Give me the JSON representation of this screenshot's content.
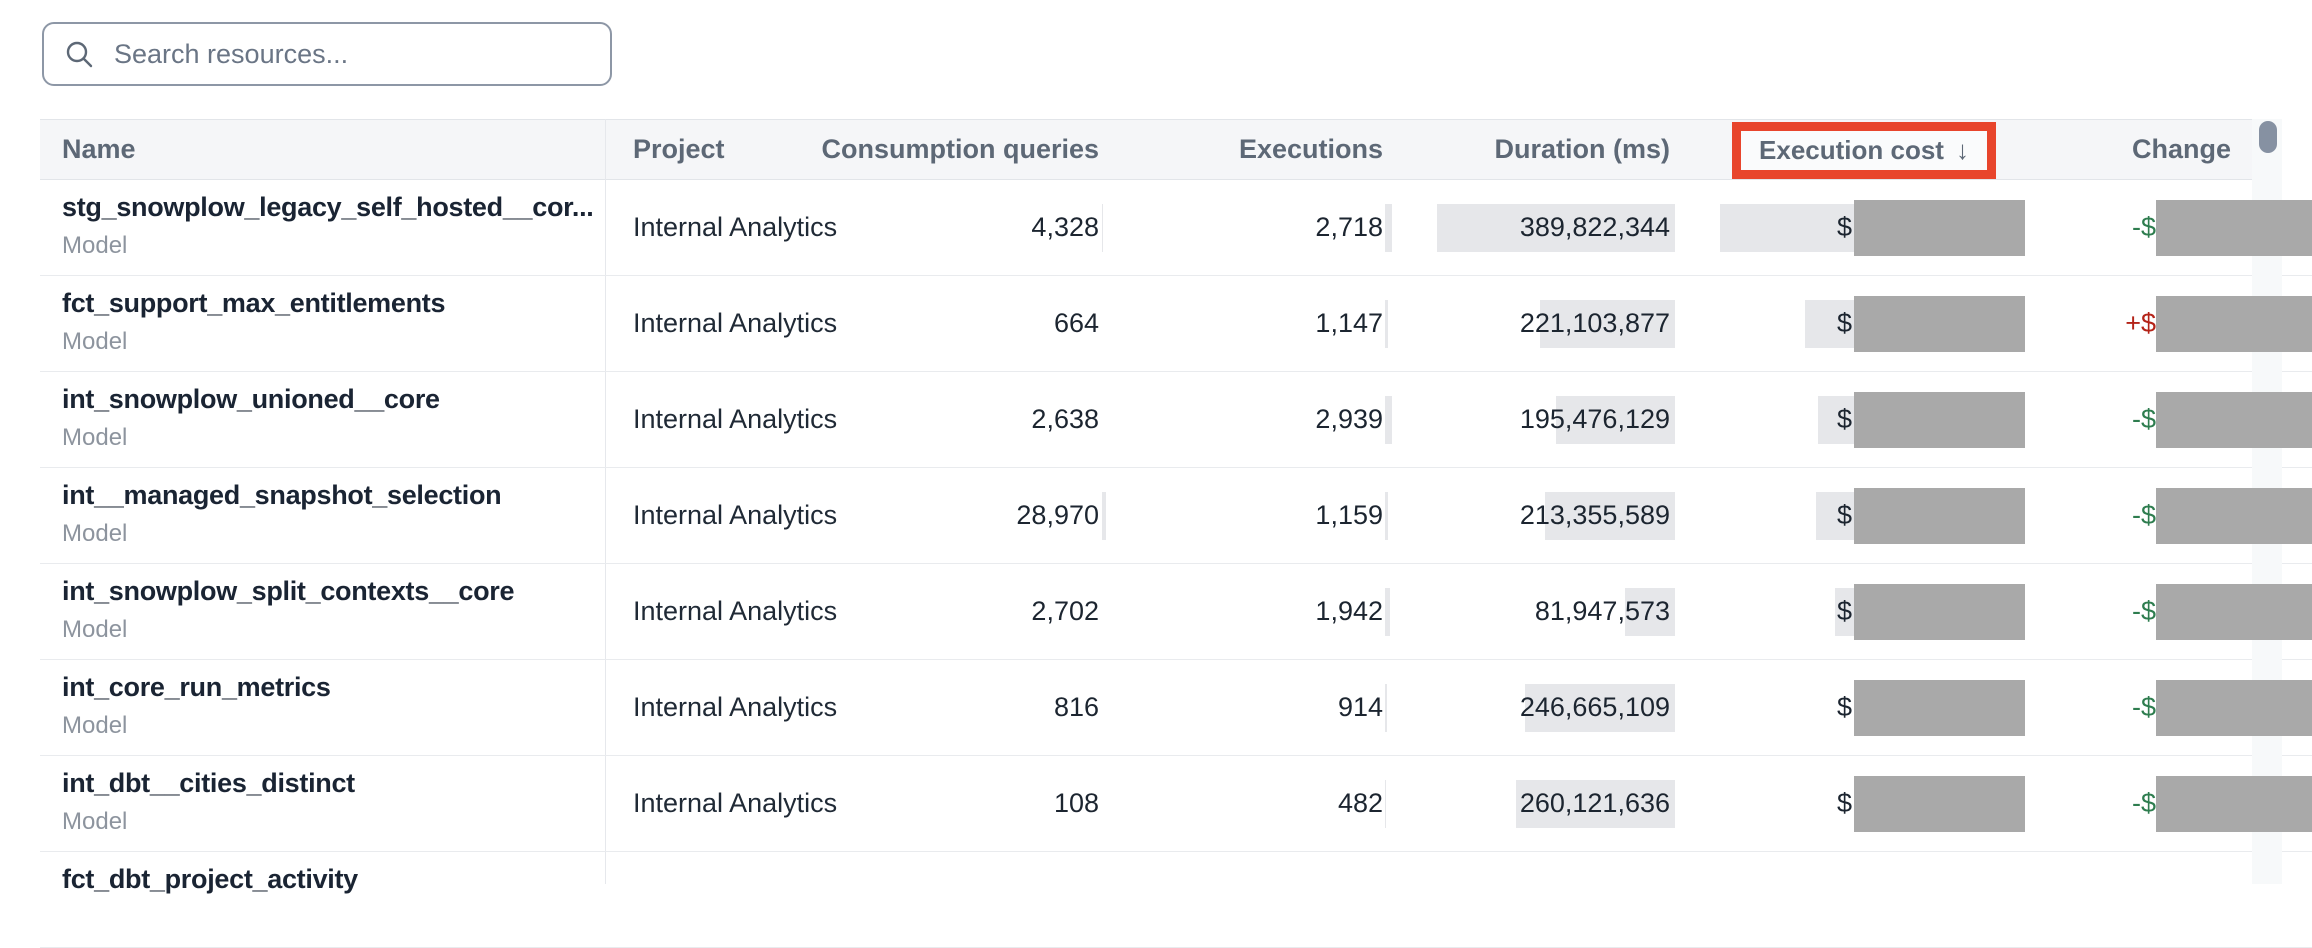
{
  "search": {
    "placeholder": "Search resources..."
  },
  "colors": {
    "sort_highlight_border": "#e8452c",
    "redaction_block": "#a9a9a9",
    "value_bar": "#e6e7ea",
    "increase_text": "#b42318",
    "decrease_text": "#2e7d4f"
  },
  "table": {
    "headers": {
      "name": "Name",
      "project": "Project",
      "queries": "Consumption queries",
      "executions": "Executions",
      "duration": "Duration (ms)",
      "cost": "Execution cost",
      "cost_sort_arrow": "↓",
      "change": "Change"
    },
    "rows": [
      {
        "name": "stg_snowplow_legacy_self_hosted__cor...",
        "type": "Model",
        "project": "Internal Analytics",
        "queries": "4,328",
        "executions": "2,718",
        "duration": "389,822,344",
        "cost_prefix": "$",
        "change_prefix": "-$",
        "change_direction": "decrease",
        "bars": {
          "queries": 1,
          "executions": 7,
          "duration": 238,
          "cost": 305
        }
      },
      {
        "name": "fct_support_max_entitlements",
        "type": "Model",
        "project": "Internal Analytics",
        "queries": "664",
        "executions": "1,147",
        "duration": "221,103,877",
        "cost_prefix": "$",
        "change_prefix": "+$",
        "change_direction": "increase",
        "bars": {
          "queries": 0,
          "executions": 3,
          "duration": 135,
          "cost": 220
        }
      },
      {
        "name": "int_snowplow_unioned__core",
        "type": "Model",
        "project": "Internal Analytics",
        "queries": "2,638",
        "executions": "2,939",
        "duration": "195,476,129",
        "cost_prefix": "$",
        "change_prefix": "-$",
        "change_direction": "decrease",
        "bars": {
          "queries": 0,
          "executions": 7,
          "duration": 119,
          "cost": 207
        }
      },
      {
        "name": "int__managed_snapshot_selection",
        "type": "Model",
        "project": "Internal Analytics",
        "queries": "28,970",
        "executions": "1,159",
        "duration": "213,355,589",
        "cost_prefix": "$",
        "change_prefix": "-$",
        "change_direction": "decrease",
        "bars": {
          "queries": 4,
          "executions": 3,
          "duration": 130,
          "cost": 209
        }
      },
      {
        "name": "int_snowplow_split_contexts__core",
        "type": "Model",
        "project": "Internal Analytics",
        "queries": "2,702",
        "executions": "1,942",
        "duration": "81,947,573",
        "cost_prefix": "$",
        "change_prefix": "-$",
        "change_direction": "decrease",
        "bars": {
          "queries": 0,
          "executions": 5,
          "duration": 50,
          "cost": 190
        }
      },
      {
        "name": "int_core_run_metrics",
        "type": "Model",
        "project": "Internal Analytics",
        "queries": "816",
        "executions": "914",
        "duration": "246,665,109",
        "cost_prefix": "$",
        "change_prefix": "-$",
        "change_direction": "decrease",
        "bars": {
          "queries": 0,
          "executions": 2,
          "duration": 150,
          "cost": 160
        }
      },
      {
        "name": "int_dbt__cities_distinct",
        "type": "Model",
        "project": "Internal Analytics",
        "queries": "108",
        "executions": "482",
        "duration": "260,121,636",
        "cost_prefix": "$",
        "change_prefix": "-$",
        "change_direction": "decrease",
        "bars": {
          "queries": 0,
          "executions": 1,
          "duration": 159,
          "cost": 150
        }
      },
      {
        "name": "fct_dbt_project_activity",
        "type": "",
        "project": "",
        "queries": "",
        "executions": "",
        "duration": "",
        "cost_prefix": "",
        "change_prefix": "",
        "change_direction": "none",
        "bars": {
          "queries": 0,
          "executions": 0,
          "duration": 0,
          "cost": 0
        }
      }
    ]
  }
}
